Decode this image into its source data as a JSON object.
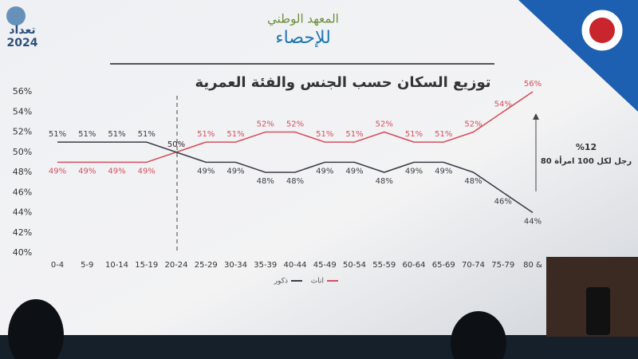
{
  "header": {
    "institute": "المعهد الوطني",
    "institute2": "للإحصاء",
    "logo": "تعداد",
    "year": "2024"
  },
  "chart_data": {
    "type": "line",
    "title": "توزيع السكان حسب الجنس والفئة العمرية",
    "categories": [
      "0-4",
      "5-9",
      "10-14",
      "15-19",
      "20-24",
      "25-29",
      "30-34",
      "35-39",
      "40-44",
      "45-49",
      "50-54",
      "55-59",
      "60-64",
      "65-69",
      "70-74",
      "75-79",
      "80 &"
    ],
    "series": [
      {
        "name": "اناث",
        "color": "#d4505f",
        "values": [
          49,
          49,
          49,
          49,
          50,
          51,
          51,
          52,
          52,
          51,
          51,
          52,
          51,
          51,
          52,
          54,
          56
        ],
        "value_labels": [
          "49%",
          "49%",
          "49%",
          "49%",
          "50%",
          "51%",
          "51%",
          "52%",
          "52%",
          "51%",
          "51%",
          "52%",
          "51%",
          "51%",
          "52%",
          "54%",
          "56%"
        ]
      },
      {
        "name": "ذكور",
        "color": "#3a3f47",
        "values": [
          51,
          51,
          51,
          51,
          50,
          49,
          49,
          48,
          48,
          49,
          49,
          48,
          49,
          49,
          48,
          46,
          44
        ],
        "value_labels": [
          "51%",
          "51%",
          "51%",
          "51%",
          "50%",
          "49%",
          "49%",
          "48%",
          "48%",
          "49%",
          "49%",
          "48%",
          "49%",
          "49%",
          "48%",
          "46%",
          "44%"
        ]
      }
    ],
    "ylim": [
      40,
      56
    ],
    "yticks": [
      {
        "value": 40,
        "label": "40%"
      },
      {
        "value": 42,
        "label": "42%"
      },
      {
        "value": 44,
        "label": "44%"
      },
      {
        "value": 46,
        "label": "46%"
      },
      {
        "value": 48,
        "label": "48%"
      },
      {
        "value": 50,
        "label": "50%"
      },
      {
        "value": 52,
        "label": "52%"
      },
      {
        "value": 54,
        "label": "54%"
      },
      {
        "value": 56,
        "label": "56%"
      }
    ],
    "annotations": [
      "%12",
      "80 رجل لكل 100 امرأة"
    ]
  }
}
